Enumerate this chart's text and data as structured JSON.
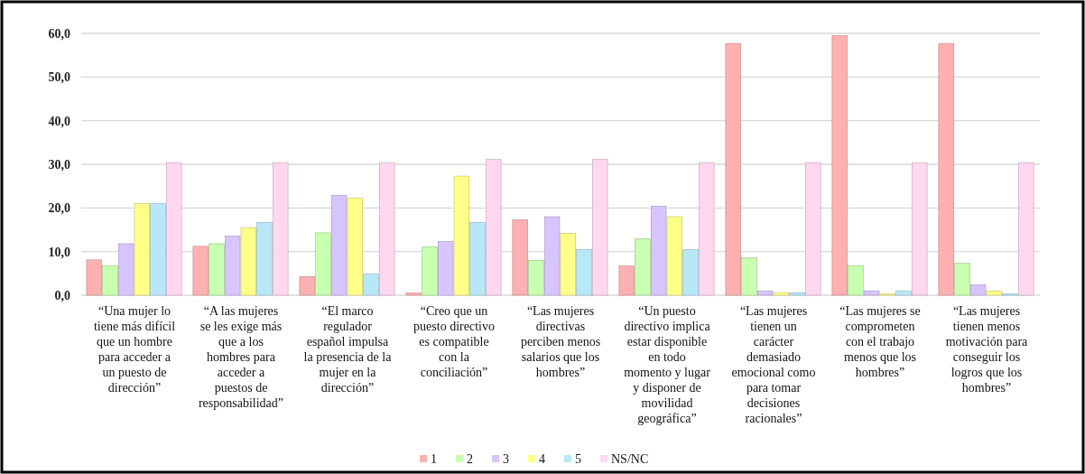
{
  "chart_data": {
    "type": "bar",
    "categories": [
      "“Una mujer lo\ntiene más difícil\nque un hombre\npara acceder a\nun puesto de\ndirección”",
      "“A las mujeres\nse les exige más\nque a los\nhombres para\nacceder a\npuestos de\nresponsabilidad”",
      "“El marco\nregulador\nespañol impulsa\nla presencia de la\nmujer en la\ndirección”",
      "“Creo que un\npuesto directivo\nes compatible\ncon la\nconciliación”",
      "“Las mujeres\ndirectivas\nperciben menos\nsalarios que los\nhombres”",
      "“Un puesto\ndirectivo implica\nestar disponible\nen todo\nmomento y lugar\ny disponer de\nmovilidad\ngeográfica”",
      "“Las mujeres\ntienen un\ncarácter\ndemasiado\nemocional como\npara tomar\ndecisiones\nracionales”",
      "“Las mujeres se\ncomprometen\ncon el trabajo\nmenos que los\nhombres”",
      "“Las mujeres\ntienen menos\nmotivación para\nconseguir los\nlogros que los\nhombres”"
    ],
    "series": [
      {
        "name": "1",
        "color": "#ffb0b0",
        "values": [
          8.1,
          11.2,
          4.3,
          0.5,
          17.3,
          6.7,
          57.7,
          59.5,
          57.7
        ]
      },
      {
        "name": "2",
        "color": "#c8ffb0",
        "values": [
          6.8,
          11.8,
          14.3,
          11.1,
          8.0,
          12.9,
          8.6,
          6.8,
          7.3
        ]
      },
      {
        "name": "3",
        "color": "#d8c4ff",
        "values": [
          11.8,
          13.6,
          22.9,
          12.3,
          18.0,
          20.4,
          1.0,
          1.0,
          2.4
        ]
      },
      {
        "name": "4",
        "color": "#ffff88",
        "values": [
          21.0,
          15.5,
          22.3,
          27.3,
          14.2,
          18.0,
          0.6,
          0.3,
          1.0
        ]
      },
      {
        "name": "5",
        "color": "#b8e8f8",
        "values": [
          21.0,
          16.7,
          4.9,
          16.7,
          10.5,
          10.5,
          0.6,
          1.0,
          0.3
        ]
      },
      {
        "name": "NS/NC",
        "color": "#ffd8f0",
        "values": [
          30.4,
          30.4,
          30.4,
          31.1,
          31.1,
          30.4,
          30.4,
          30.4,
          30.4
        ]
      }
    ],
    "ylim": [
      0,
      60
    ],
    "yticks": [
      {
        "value": 0,
        "label": "0,0"
      },
      {
        "value": 10,
        "label": "10,0"
      },
      {
        "value": 20,
        "label": "20,0"
      },
      {
        "value": 30,
        "label": "30,0"
      },
      {
        "value": 40,
        "label": "40,0"
      },
      {
        "value": 50,
        "label": "50,0"
      },
      {
        "value": 60,
        "label": "60,0"
      }
    ],
    "grid": "y",
    "legend": "bottom"
  }
}
